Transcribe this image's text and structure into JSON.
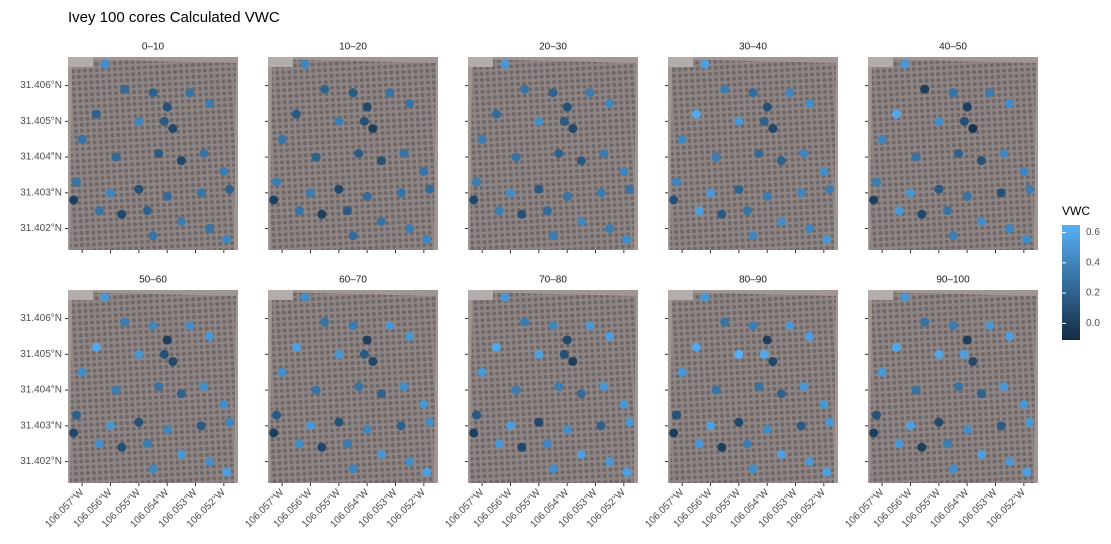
{
  "chart_data": {
    "type": "faceted-point-map",
    "title": "Ivey 100 cores Calculated VWC",
    "lon": [
      -106.0562,
      -106.0555,
      -106.0545,
      -106.054,
      -106.0541,
      -106.0538,
      -106.0532,
      -106.0525,
      -106.0565,
      -106.055,
      -106.057,
      -106.0558,
      -106.0543,
      -106.0535,
      -106.0527,
      -106.052,
      -106.0572,
      -106.056,
      -106.055,
      -106.054,
      -106.0528,
      -106.0518,
      -106.0573,
      -106.0564,
      -106.0556,
      -106.0547,
      -106.0535,
      -106.0525,
      -106.0519,
      -106.0545
    ],
    "lat": [
      31.4066,
      31.4059,
      31.4058,
      31.4054,
      31.405,
      31.4048,
      31.4058,
      31.4055,
      31.4052,
      31.405,
      31.4045,
      31.404,
      31.4041,
      31.4039,
      31.4041,
      31.4036,
      31.4033,
      31.403,
      31.4031,
      31.4029,
      31.403,
      31.4031,
      31.4028,
      31.4025,
      31.4024,
      31.4025,
      31.4022,
      31.402,
      31.4017,
      31.4018
    ],
    "panels": [
      {
        "name": "0–10",
        "values": [
          0.45,
          0.25,
          0.2,
          0.1,
          0.15,
          0.05,
          0.3,
          0.35,
          0.2,
          0.4,
          0.3,
          0.25,
          0.15,
          0.05,
          0.3,
          0.35,
          0.3,
          0.4,
          0.1,
          0.25,
          0.3,
          0.2,
          0.0,
          0.3,
          0.05,
          0.2,
          0.35,
          0.3,
          0.4,
          0.3
        ]
      },
      {
        "name": "10–20",
        "values": [
          0.4,
          0.2,
          0.15,
          0.05,
          0.1,
          0.0,
          0.3,
          0.3,
          0.15,
          0.35,
          0.3,
          0.2,
          0.15,
          0.1,
          0.3,
          0.3,
          0.35,
          0.35,
          0.05,
          0.25,
          0.3,
          0.25,
          0.0,
          0.3,
          0.0,
          0.15,
          0.3,
          0.35,
          0.4,
          0.25
        ]
      },
      {
        "name": "20–30",
        "values": [
          0.5,
          0.3,
          0.2,
          0.1,
          0.15,
          0.05,
          0.35,
          0.4,
          0.25,
          0.45,
          0.35,
          0.3,
          0.2,
          0.15,
          0.35,
          0.4,
          0.35,
          0.45,
          0.15,
          0.3,
          0.35,
          0.3,
          0.05,
          0.35,
          0.1,
          0.25,
          0.4,
          0.35,
          0.45,
          0.35
        ]
      },
      {
        "name": "30–40",
        "values": [
          0.55,
          0.35,
          0.25,
          0.1,
          0.2,
          0.05,
          0.4,
          0.45,
          0.6,
          0.5,
          0.4,
          0.35,
          0.25,
          0.2,
          0.4,
          0.45,
          0.4,
          0.5,
          0.2,
          0.35,
          0.4,
          0.35,
          0.1,
          0.55,
          0.15,
          0.3,
          0.45,
          0.4,
          0.5,
          0.4
        ]
      },
      {
        "name": "40–50",
        "values": [
          0.5,
          0.0,
          0.3,
          0.0,
          0.1,
          -0.05,
          0.35,
          0.45,
          0.6,
          0.45,
          0.4,
          0.3,
          0.2,
          0.1,
          0.4,
          0.4,
          0.35,
          0.5,
          0.15,
          0.3,
          0.1,
          0.35,
          0.0,
          0.5,
          0.05,
          0.3,
          0.45,
          0.4,
          0.45,
          0.35
        ]
      },
      {
        "name": "50–60",
        "values": [
          0.5,
          0.35,
          0.4,
          0.0,
          0.1,
          0.05,
          0.45,
          0.5,
          0.6,
          0.5,
          0.45,
          0.35,
          0.3,
          0.2,
          0.45,
          0.45,
          0.2,
          0.5,
          0.1,
          0.4,
          0.15,
          0.4,
          0.05,
          0.45,
          0.1,
          0.35,
          0.5,
          0.45,
          0.55,
          0.4
        ]
      },
      {
        "name": "60–70",
        "values": [
          0.45,
          0.3,
          0.35,
          0.0,
          0.15,
          0.05,
          0.5,
          0.5,
          0.55,
          0.5,
          0.45,
          0.3,
          0.3,
          0.2,
          0.45,
          0.5,
          0.15,
          0.5,
          0.1,
          0.4,
          0.2,
          0.45,
          0.0,
          0.45,
          0.05,
          0.35,
          0.5,
          0.45,
          0.55,
          0.4
        ]
      },
      {
        "name": "70–80",
        "values": [
          0.5,
          0.35,
          0.4,
          0.05,
          0.1,
          0.0,
          0.5,
          0.55,
          0.6,
          0.55,
          0.5,
          0.35,
          0.35,
          0.25,
          0.5,
          0.5,
          0.15,
          0.55,
          0.05,
          0.45,
          0.2,
          0.5,
          0.0,
          0.5,
          0.05,
          0.4,
          0.55,
          0.5,
          0.55,
          0.45
        ]
      },
      {
        "name": "80–90",
        "values": [
          0.5,
          0.3,
          0.35,
          0.0,
          0.6,
          0.05,
          0.5,
          0.55,
          0.6,
          0.65,
          0.5,
          0.3,
          0.3,
          0.2,
          0.5,
          0.5,
          0.1,
          0.55,
          0.05,
          0.45,
          0.15,
          0.5,
          0.0,
          0.5,
          0.0,
          0.35,
          0.55,
          0.5,
          0.55,
          0.45
        ]
      },
      {
        "name": "90–100",
        "values": [
          0.5,
          0.3,
          0.35,
          0.0,
          0.55,
          0.05,
          0.5,
          0.55,
          0.6,
          0.6,
          0.5,
          0.3,
          0.3,
          0.2,
          0.5,
          0.5,
          0.1,
          0.55,
          0.05,
          0.45,
          0.15,
          0.5,
          0.0,
          0.5,
          0.0,
          0.35,
          0.55,
          0.5,
          0.55,
          0.45
        ]
      }
    ],
    "xlim": [
      -106.0575,
      -106.0515
    ],
    "ylim": [
      31.4014,
      31.4068
    ],
    "xticks": [
      {
        "value": -106.057,
        "label": "106.057°W"
      },
      {
        "value": -106.056,
        "label": "106.056°W"
      },
      {
        "value": -106.055,
        "label": "106.055°W"
      },
      {
        "value": -106.054,
        "label": "106.054°W"
      },
      {
        "value": -106.053,
        "label": "106.053°W"
      },
      {
        "value": -106.052,
        "label": "106.052°W"
      }
    ],
    "yticks": [
      {
        "value": 31.402,
        "label": "31.402°N"
      },
      {
        "value": 31.403,
        "label": "31.403°N"
      },
      {
        "value": 31.404,
        "label": "31.404°N"
      },
      {
        "value": 31.405,
        "label": "31.405°N"
      },
      {
        "value": 31.406,
        "label": "31.406°N"
      }
    ],
    "color_scale": {
      "title": "VWC",
      "lim": [
        -0.11,
        0.65
      ],
      "ticks": [
        {
          "value": 0,
          "label": "0.0"
        },
        0.2,
        0.4,
        0.6
      ],
      "low_color": "#132B43",
      "high_color": "#56B1F7"
    }
  }
}
